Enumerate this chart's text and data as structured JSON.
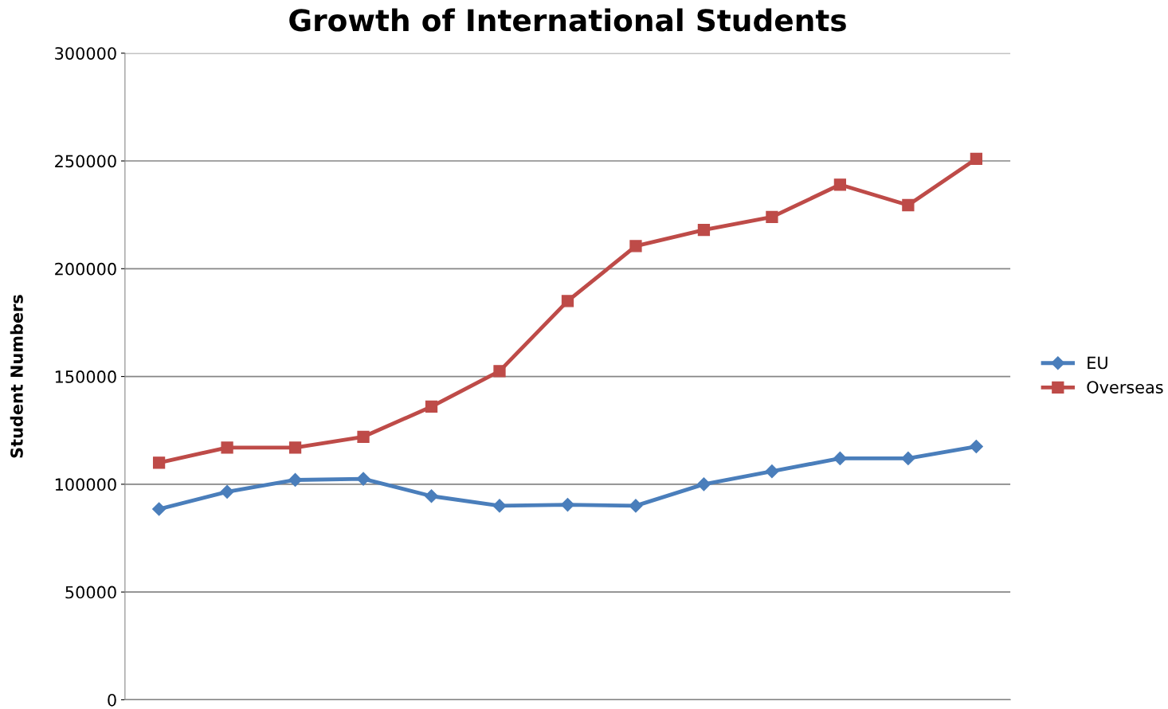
{
  "chart_data": {
    "type": "line",
    "title": "Growth of International Students",
    "ylabel": "Student Numbers",
    "categories": [
      null,
      null,
      null,
      null,
      null,
      null,
      null,
      null,
      null,
      null,
      null,
      null,
      null
    ],
    "series": [
      {
        "name": "EU",
        "color": "#4a7ebb",
        "marker": "diamond",
        "values": [
          88500,
          96500,
          102000,
          102500,
          94500,
          90000,
          90500,
          90000,
          100000,
          106000,
          112000,
          112000,
          117500
        ]
      },
      {
        "name": "Overseas",
        "color": "#be4b48",
        "marker": "square",
        "values": [
          110000,
          117000,
          117000,
          122000,
          136000,
          152500,
          185000,
          210500,
          218000,
          224000,
          239000,
          229500,
          251000
        ]
      }
    ],
    "ylim": [
      0,
      300000
    ],
    "yticks": [
      0,
      50000,
      100000,
      150000,
      200000,
      250000,
      300000
    ],
    "grid": "y",
    "legend": "right",
    "tick_labels": "y",
    "line_style": "solid"
  }
}
